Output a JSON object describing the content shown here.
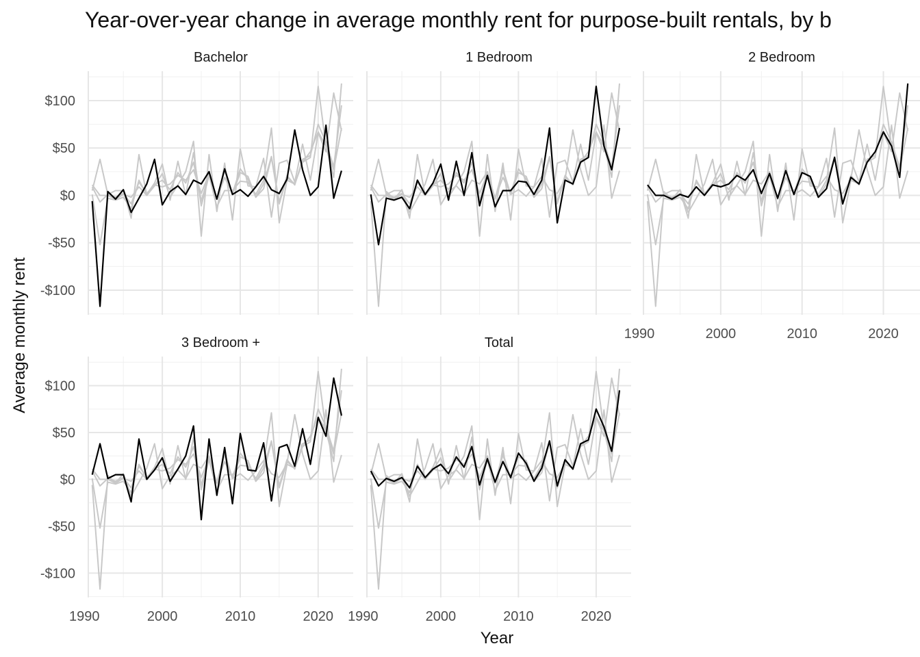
{
  "chart_data": {
    "type": "line",
    "title": "Year-over-year change in average monthly rent for purpose-built rentals, by b",
    "xlabel": "Year",
    "ylabel": "Average monthly rent",
    "xlim": [
      1990.5,
      2024.5
    ],
    "ylim": [
      -126,
      131
    ],
    "x_ticks": [
      1990,
      2000,
      2010,
      2020
    ],
    "x_tick_labels": [
      "1990",
      "2000",
      "2010",
      "2020"
    ],
    "y_ticks": [
      -100,
      -50,
      0,
      50,
      100
    ],
    "y_tick_labels": [
      "-$100",
      "-$50",
      "$0",
      "$50",
      "$100"
    ],
    "grid": true,
    "legend": "none",
    "highlight_color": "#000000",
    "context_color": "#c8c8c8",
    "x": [
      1991,
      1992,
      1993,
      1994,
      1995,
      1996,
      1997,
      1998,
      1999,
      2000,
      2001,
      2002,
      2003,
      2004,
      2005,
      2006,
      2007,
      2008,
      2009,
      2010,
      2011,
      2012,
      2013,
      2014,
      2015,
      2016,
      2017,
      2018,
      2019,
      2020,
      2021,
      2022,
      2023
    ],
    "series": [
      {
        "name": "Bachelor",
        "values": [
          -6,
          -117,
          4,
          -4,
          6,
          -18,
          -3,
          12,
          38,
          -10,
          4,
          10,
          1,
          16,
          12,
          25,
          -4,
          28,
          1,
          6,
          -1,
          9,
          20,
          6,
          2,
          17,
          69,
          27,
          0,
          9,
          74,
          -3,
          26
        ]
      },
      {
        "name": "1 Bedroom",
        "values": [
          1,
          -52,
          -3,
          -5,
          -2,
          -14,
          16,
          1,
          13,
          33,
          -5,
          36,
          0,
          45,
          -11,
          21,
          -12,
          5,
          5,
          15,
          14,
          1,
          16,
          71,
          -29,
          16,
          12,
          35,
          40,
          115,
          52,
          27,
          71
        ]
      },
      {
        "name": "2 Bedroom",
        "values": [
          11,
          0,
          0,
          -4,
          1,
          -2,
          9,
          0,
          11,
          9,
          12,
          21,
          16,
          27,
          2,
          23,
          -3,
          26,
          1,
          24,
          20,
          -2,
          7,
          40,
          -9,
          19,
          12,
          35,
          46,
          67,
          52,
          19,
          118
        ]
      },
      {
        "name": "3 Bedroom +",
        "values": [
          5,
          38,
          1,
          5,
          5,
          -24,
          43,
          0,
          10,
          23,
          -2,
          11,
          25,
          57,
          -43,
          43,
          -17,
          34,
          -26,
          49,
          10,
          9,
          39,
          -23,
          34,
          37,
          14,
          54,
          16,
          66,
          46,
          108,
          68
        ]
      },
      {
        "name": "Total",
        "values": [
          9,
          -7,
          1,
          -2,
          2,
          -9,
          14,
          2,
          11,
          16,
          6,
          24,
          13,
          35,
          -6,
          22,
          -3,
          19,
          2,
          28,
          17,
          -2,
          12,
          41,
          -7,
          21,
          11,
          38,
          42,
          75,
          56,
          30,
          95
        ]
      }
    ]
  }
}
